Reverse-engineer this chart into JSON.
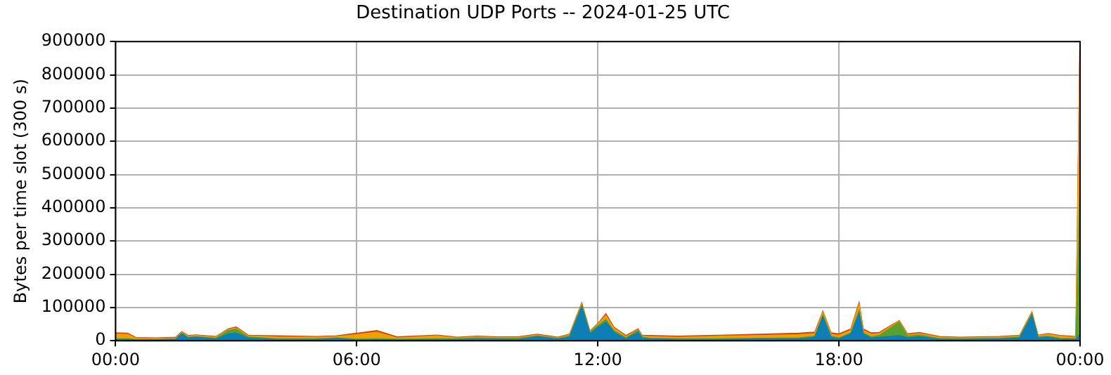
{
  "chart_data": {
    "type": "area",
    "title": "Destination UDP Ports -- 2024-01-25 UTC",
    "ylabel": "Bytes per time slot (300 s)",
    "stacked": true,
    "grid": true,
    "x": [
      0,
      0.3,
      0.5,
      1,
      1.5,
      1.65,
      1.8,
      2,
      2.5,
      2.8,
      3.0,
      3.3,
      4,
      5,
      5.5,
      6,
      6.5,
      7,
      8,
      8.5,
      9,
      9.5,
      10,
      10.5,
      11,
      11.3,
      11.6,
      11.8,
      12,
      12.2,
      12.4,
      12.7,
      13,
      13.1,
      13.3,
      14,
      15,
      16,
      17,
      17.4,
      17.6,
      17.8,
      18,
      18.3,
      18.5,
      18.6,
      18.8,
      19,
      19.5,
      19.7,
      20,
      20.5,
      21,
      22,
      22.5,
      22.8,
      22.95,
      23.2,
      23.5,
      23.9,
      24
    ],
    "xlim": [
      0,
      24
    ],
    "xticks": [
      {
        "value": 0,
        "label": "00:00"
      },
      {
        "value": 6,
        "label": "06:00"
      },
      {
        "value": 12,
        "label": "12:00"
      },
      {
        "value": 18,
        "label": "18:00"
      },
      {
        "value": 24,
        "label": "00:00"
      }
    ],
    "ylim": [
      0,
      900000
    ],
    "yticks": [
      0,
      100000,
      200000,
      300000,
      400000,
      500000,
      600000,
      700000,
      800000,
      900000
    ],
    "series": [
      {
        "color": "#0e7fb5",
        "values": [
          3000,
          3000,
          2000,
          2000,
          4000,
          20000,
          8000,
          10000,
          5000,
          20000,
          22000,
          8000,
          3000,
          3000,
          6000,
          2000,
          3000,
          2000,
          3000,
          3000,
          4000,
          4000,
          3000,
          12000,
          4000,
          10000,
          100000,
          20000,
          40000,
          55000,
          25000,
          5000,
          25000,
          8000,
          5000,
          3000,
          3000,
          5000,
          5000,
          10000,
          70000,
          10000,
          5000,
          20000,
          80000,
          20000,
          8000,
          10000,
          15000,
          8000,
          12000,
          4000,
          3000,
          5000,
          8000,
          75000,
          8000,
          10000,
          4000,
          3000,
          20000
        ]
      },
      {
        "color": "#5aa02c",
        "values": [
          2000,
          2000,
          1000,
          1000,
          1000,
          2000,
          2000,
          2000,
          2000,
          10000,
          12000,
          3000,
          2000,
          2000,
          2000,
          2000,
          2000,
          2000,
          2000,
          2000,
          4000,
          2000,
          3000,
          2000,
          2000,
          4000,
          5000,
          3000,
          5000,
          8000,
          4000,
          3000,
          5000,
          2000,
          2000,
          2000,
          2000,
          2000,
          3000,
          3000,
          5000,
          3000,
          3000,
          3000,
          8000,
          3000,
          3000,
          5000,
          40000,
          5000,
          5000,
          2000,
          2000,
          2000,
          3000,
          4000,
          3000,
          3000,
          3000,
          3000,
          420000
        ]
      },
      {
        "color": "#f0a000",
        "values": [
          15000,
          14000,
          4000,
          3000,
          3000,
          3000,
          3000,
          3000,
          3000,
          3000,
          4000,
          3000,
          6000,
          5000,
          4000,
          14000,
          20000,
          4000,
          9000,
          3000,
          3000,
          3000,
          3000,
          3000,
          2000,
          3000,
          4000,
          3000,
          4000,
          12000,
          8000,
          4000,
          3000,
          3000,
          5000,
          5000,
          8000,
          8000,
          10000,
          8000,
          8000,
          6000,
          8000,
          8000,
          18000,
          8000,
          8000,
          6000,
          3000,
          4000,
          4000,
          4000,
          3000,
          3000,
          3000,
          4000,
          3000,
          6000,
          6000,
          4000,
          430000
        ]
      },
      {
        "color": "#d04010",
        "values": [
          3000,
          3000,
          2000,
          2000,
          2000,
          2000,
          2000,
          2000,
          2000,
          2000,
          3000,
          2000,
          3000,
          2000,
          2000,
          4000,
          5000,
          3000,
          2000,
          2000,
          2000,
          2000,
          2000,
          2000,
          2000,
          2000,
          3000,
          2000,
          2000,
          5000,
          3000,
          3000,
          2000,
          2000,
          3000,
          3000,
          3000,
          4000,
          4000,
          4000,
          4000,
          4000,
          4000,
          4000,
          6000,
          4000,
          4000,
          3000,
          2000,
          3000,
          3000,
          2000,
          2000,
          2000,
          2000,
          2000,
          2000,
          2000,
          2000,
          2000,
          20000
        ]
      }
    ]
  }
}
